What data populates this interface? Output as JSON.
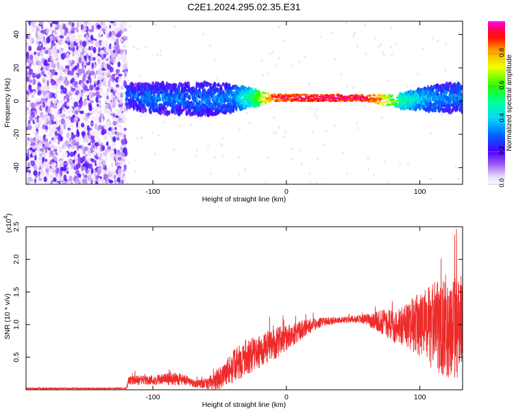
{
  "title": "C2E1.2024.295.02.35.E31",
  "chart_data": [
    {
      "type": "heatmap",
      "name": "spectrogram",
      "xlabel": "Height of straight line (km)",
      "ylabel": "Frequency (Hz)",
      "xlim": [
        -195,
        132
      ],
      "ylim": [
        -50,
        48
      ],
      "xticks": [
        -100,
        0,
        100
      ],
      "xtick_labels": [
        "-100",
        "0",
        "100"
      ],
      "yticks": [
        -40,
        -20,
        0,
        20,
        40
      ],
      "ytick_labels": [
        "-40",
        "-20",
        "0",
        "20",
        "40"
      ],
      "noise_region": [
        -195,
        -120
      ],
      "signal_band": [
        {
          "x": -120,
          "center": 3,
          "width": 7,
          "amp": 0.3
        },
        {
          "x": -100,
          "center": 2,
          "width": 9,
          "amp": 0.33
        },
        {
          "x": -80,
          "center": 1,
          "width": 9,
          "amp": 0.32
        },
        {
          "x": -60,
          "center": 1,
          "width": 10,
          "amp": 0.33
        },
        {
          "x": -40,
          "center": 2,
          "width": 8,
          "amp": 0.36
        },
        {
          "x": -25,
          "center": 2,
          "width": 5,
          "amp": 0.55
        },
        {
          "x": -10,
          "center": 2,
          "width": 2,
          "amp": 0.92
        },
        {
          "x": 0,
          "center": 2,
          "width": 2,
          "amp": 0.95
        },
        {
          "x": 20,
          "center": 2,
          "width": 2,
          "amp": 0.97
        },
        {
          "x": 40,
          "center": 2,
          "width": 2,
          "amp": 0.97
        },
        {
          "x": 60,
          "center": 2,
          "width": 2,
          "amp": 0.95
        },
        {
          "x": 70,
          "center": 1,
          "width": 3,
          "amp": 0.85
        },
        {
          "x": 85,
          "center": 0,
          "width": 4,
          "amp": 0.55
        },
        {
          "x": 100,
          "center": 1,
          "width": 6,
          "amp": 0.42
        },
        {
          "x": 115,
          "center": 2,
          "width": 8,
          "amp": 0.35
        },
        {
          "x": 132,
          "center": 2,
          "width": 9,
          "amp": 0.33
        }
      ],
      "colorbar": {
        "label": "Normalized spectral amplitude",
        "range": [
          0,
          1
        ],
        "ticks": [
          0.0,
          0.2,
          0.4,
          0.6,
          0.8
        ],
        "tick_labels": [
          "0.0",
          "0.2",
          "0.4",
          "0.6",
          "0.8"
        ]
      }
    },
    {
      "type": "line",
      "name": "snr",
      "color": "#ee2a2a",
      "xlabel": "Height of straight line (km)",
      "ylabel": "SNR (10 * v/v)",
      "y_multiplier": "(x10",
      "y_multiplier_exp": "4",
      "y_multiplier_close": ")",
      "xlim": [
        -195,
        132
      ],
      "ylim": [
        0,
        2.5
      ],
      "xticks": [
        -100,
        0,
        100
      ],
      "xtick_labels": [
        "-100",
        "0",
        "100"
      ],
      "yticks": [
        0.5,
        1.0,
        1.5,
        2.0,
        2.5
      ],
      "ytick_labels": [
        "0.5",
        "1.0",
        "1.5",
        "2.0",
        "2.5"
      ],
      "envelope": {
        "x": [
          -195,
          -120,
          -118,
          -100,
          -80,
          -70,
          -60,
          -50,
          -40,
          -30,
          -20,
          -10,
          0,
          10,
          20,
          30,
          40,
          50,
          60,
          70,
          80,
          90,
          100,
          110,
          120,
          132
        ],
        "mean": [
          0.02,
          0.02,
          0.14,
          0.15,
          0.17,
          0.1,
          0.08,
          0.18,
          0.35,
          0.5,
          0.58,
          0.7,
          0.8,
          0.9,
          1.0,
          1.05,
          1.07,
          1.08,
          1.08,
          1.05,
          0.98,
          0.98,
          1.0,
          0.95,
          0.95,
          0.95
        ],
        "amp": [
          0.01,
          0.01,
          0.07,
          0.08,
          0.1,
          0.06,
          0.08,
          0.18,
          0.25,
          0.28,
          0.25,
          0.25,
          0.2,
          0.15,
          0.1,
          0.06,
          0.05,
          0.05,
          0.08,
          0.18,
          0.25,
          0.35,
          0.5,
          0.7,
          0.75,
          0.8
        ]
      }
    }
  ]
}
